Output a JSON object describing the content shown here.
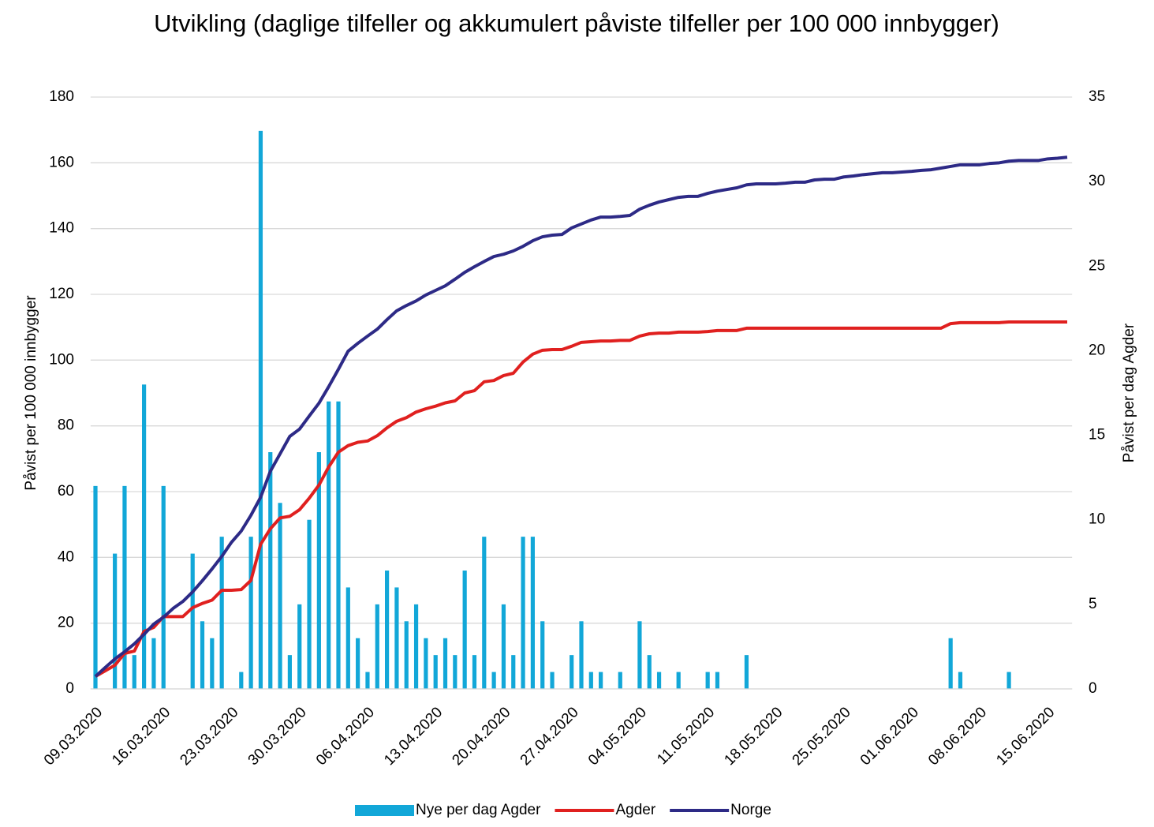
{
  "chart_data": {
    "type": "bar_line",
    "title": "Utvikling (daglige tilfeller og akkumulert påviste tilfeller per 100 000 innbygger)",
    "y_label": "Påvist per 100 000 innbygger",
    "y2_label": "Påvist per dag Agder",
    "categories": [
      "09.03.2020",
      null,
      null,
      null,
      null,
      null,
      null,
      "16.03.2020",
      null,
      null,
      null,
      null,
      null,
      null,
      "23.03.2020",
      null,
      null,
      null,
      null,
      null,
      null,
      "30.03.2020",
      null,
      null,
      null,
      null,
      null,
      null,
      "06.04.2020",
      null,
      null,
      null,
      null,
      null,
      null,
      "13.04.2020",
      null,
      null,
      null,
      null,
      null,
      null,
      "20.04.2020",
      null,
      null,
      null,
      null,
      null,
      null,
      "27.04.2020",
      null,
      null,
      null,
      null,
      null,
      null,
      "04.05.2020",
      null,
      null,
      null,
      null,
      null,
      null,
      "11.05.2020",
      null,
      null,
      null,
      null,
      null,
      null,
      "18.05.2020",
      null,
      null,
      null,
      null,
      null,
      null,
      "25.05.2020",
      null,
      null,
      null,
      null,
      null,
      null,
      "01.06.2020",
      null,
      null,
      null,
      null,
      null,
      null,
      "08.06.2020",
      null,
      null,
      null,
      null,
      null,
      null,
      "15.06.2020",
      null,
      null
    ],
    "series": [
      {
        "name": "Nye per dag Agder",
        "kind": "bar",
        "axis": "y2",
        "color": "#12a7d8",
        "values": [
          12,
          0,
          8,
          12,
          2,
          18,
          3,
          12,
          0,
          0,
          8,
          4,
          3,
          9,
          0,
          1,
          9,
          33,
          14,
          11,
          2,
          5,
          10,
          14,
          17,
          17,
          6,
          3,
          1,
          5,
          7,
          6,
          4,
          5,
          3,
          2,
          3,
          2,
          7,
          2,
          9,
          1,
          5,
          2,
          9,
          9,
          4,
          1,
          0,
          2,
          4,
          1,
          1,
          0,
          1,
          0,
          4,
          2,
          1,
          0,
          1,
          0,
          0,
          1,
          1,
          0,
          0,
          2,
          0,
          0,
          0,
          0,
          0,
          0,
          0,
          0,
          0,
          0,
          0,
          0,
          0,
          0,
          0,
          0,
          0,
          0,
          0,
          0,
          3,
          1,
          0,
          0,
          0,
          0,
          1,
          0,
          0,
          0,
          0,
          0,
          0
        ]
      },
      {
        "name": "Agder",
        "kind": "line",
        "color": "#e0201f",
        "values": [
          3.8,
          5.5,
          7.2,
          10.8,
          11.5,
          17.5,
          18.7,
          22,
          22,
          22,
          24.7,
          26,
          27,
          30,
          30,
          30.2,
          33,
          44,
          48.7,
          52,
          52.5,
          54.5,
          58,
          62,
          67.5,
          72,
          74,
          75,
          75.4,
          77,
          79.4,
          81.4,
          82.5,
          84.2,
          85.2,
          86,
          87,
          87.6,
          90,
          90.7,
          93.4,
          93.8,
          95.3,
          96,
          99.4,
          101.8,
          103,
          103.2,
          103.2,
          104.2,
          105.4,
          105.6,
          105.8,
          105.8,
          106,
          106,
          107.3,
          108,
          108.2,
          108.2,
          108.5,
          108.5,
          108.5,
          108.7,
          109,
          109,
          109,
          109.7,
          109.7,
          109.7,
          109.7,
          109.7,
          109.7,
          109.7,
          109.7,
          109.7,
          109.7,
          109.7,
          109.7,
          109.7,
          109.7,
          109.7,
          109.7,
          109.7,
          109.7,
          109.7,
          109.7,
          109.7,
          111.1,
          111.4,
          111.4,
          111.4,
          111.4,
          111.4,
          111.6,
          111.6,
          111.6,
          111.6,
          111.6,
          111.6,
          111.6
        ]
      },
      {
        "name": "Norge",
        "kind": "line",
        "color": "#2d2a86",
        "values": [
          3.8,
          6.5,
          9.1,
          11.3,
          13.7,
          16.6,
          19.7,
          21.8,
          24.5,
          26.6,
          29.5,
          32.9,
          36.5,
          40.3,
          44.6,
          48,
          52.8,
          58.3,
          66.2,
          71.5,
          76.8,
          79,
          83,
          86.9,
          91.9,
          97.2,
          102.7,
          105.1,
          107.3,
          109.4,
          112.3,
          115,
          116.6,
          118,
          119.8,
          121.2,
          122.6,
          124.6,
          126.7,
          128.4,
          130,
          131.5,
          132.2,
          133.2,
          134.6,
          136.3,
          137.5,
          138,
          138.2,
          140.2,
          141.4,
          142.6,
          143.5,
          143.5,
          143.7,
          144,
          145.9,
          147.1,
          148.1,
          148.8,
          149.5,
          149.8,
          149.8,
          150.7,
          151.4,
          151.9,
          152.4,
          153.3,
          153.6,
          153.6,
          153.6,
          153.8,
          154.1,
          154.1,
          154.8,
          155,
          155,
          155.7,
          156,
          156.4,
          156.7,
          157,
          157,
          157.2,
          157.4,
          157.7,
          157.9,
          158.4,
          158.9,
          159.4,
          159.4,
          159.4,
          159.8,
          160,
          160.5,
          160.7,
          160.7,
          160.7,
          161.2,
          161.4,
          161.7
        ]
      }
    ],
    "ylim": [
      0,
      180
    ],
    "yticks": [
      0,
      20,
      40,
      60,
      80,
      100,
      120,
      140,
      160,
      180
    ],
    "y2lim": [
      0,
      35
    ],
    "y2ticks": [
      0,
      5,
      10,
      15,
      20,
      25,
      30,
      35
    ],
    "grid": true,
    "legend": "bottom"
  }
}
